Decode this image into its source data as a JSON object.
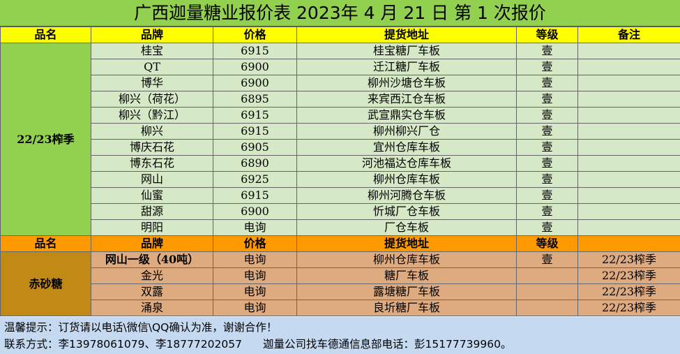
{
  "title": "广西迦量糖业报价表 2023年 4 月 21 日 第 1 次报价",
  "header": {
    "name": "品名",
    "brand": "品牌",
    "price": "价格",
    "address": "提货地址",
    "grade": "等级",
    "note": "备注"
  },
  "section1": {
    "category": "22/23榨季",
    "rows": [
      {
        "brand": "桂宝",
        "price": "6915",
        "address": "桂宝糖厂车板",
        "grade": "壹",
        "note": ""
      },
      {
        "brand": "QT",
        "price": "6900",
        "address": "迁江糖厂车板",
        "grade": "壹",
        "note": ""
      },
      {
        "brand": "博华",
        "price": "6900",
        "address": "柳州沙塘仓车板",
        "grade": "壹",
        "note": ""
      },
      {
        "brand": "柳兴（荷花）",
        "price": "6895",
        "address": "来宾西江仓车板",
        "grade": "壹",
        "note": ""
      },
      {
        "brand": "柳兴（黔江）",
        "price": "6915",
        "address": "武宣鼎实仓车板",
        "grade": "壹",
        "note": ""
      },
      {
        "brand": "柳兴",
        "price": "6915",
        "address": "柳州柳兴厂仓",
        "grade": "壹",
        "note": ""
      },
      {
        "brand": "博庆石花",
        "price": "6905",
        "address": "宜州仓库车板",
        "grade": "壹",
        "note": ""
      },
      {
        "brand": "博东石花",
        "price": "6890",
        "address": "河池福达仓库车板",
        "grade": "壹",
        "note": ""
      },
      {
        "brand": "网山",
        "price": "6925",
        "address": "柳州仓库车板",
        "grade": "壹",
        "note": ""
      },
      {
        "brand": "仙蜜",
        "price": "6915",
        "address": "柳州河腾仓车板",
        "grade": "壹",
        "note": ""
      },
      {
        "brand": "甜源",
        "price": "6900",
        "address": "忻城厂仓车板",
        "grade": "壹",
        "note": ""
      },
      {
        "brand": "明阳",
        "price": "电询",
        "address": "厂仓车板",
        "grade": "壹",
        "note": ""
      }
    ]
  },
  "section2": {
    "category": "赤砂糖",
    "rows": [
      {
        "brand": "网山一级（40吨）",
        "price": "电询",
        "address": "柳州仓库车板",
        "grade": "壹",
        "note": "22/23榨季"
      },
      {
        "brand": "金光",
        "price": "电询",
        "address": "糖厂车板",
        "grade": "",
        "note": "22/23榨季"
      },
      {
        "brand": "双露",
        "price": "电询",
        "address": "露塘糖厂车板",
        "grade": "",
        "note": "22/23榨季"
      },
      {
        "brand": "涌泉",
        "price": "电询",
        "address": "良圻糖厂车板",
        "grade": "",
        "note": "22/23榨季"
      }
    ]
  },
  "footer": {
    "line1": "温馨提示：订货请以电话\\微信\\QQ确认为准，谢谢合作！",
    "line2": "联系方式：李13978061079、李18777202057",
    "line2b": "迦量公司找车德通信息部电话：彭15177739960。"
  },
  "colors": {
    "title_bg": "#92d050",
    "header_bg": "#ffff00",
    "section2_header_bg": "#ff9900",
    "section1_row_bg": "#d6e9c6",
    "section2_row_bg": "#deaa7f",
    "section2_label_bg": "#c08a14",
    "footer_bg": "#c5d9f1"
  }
}
